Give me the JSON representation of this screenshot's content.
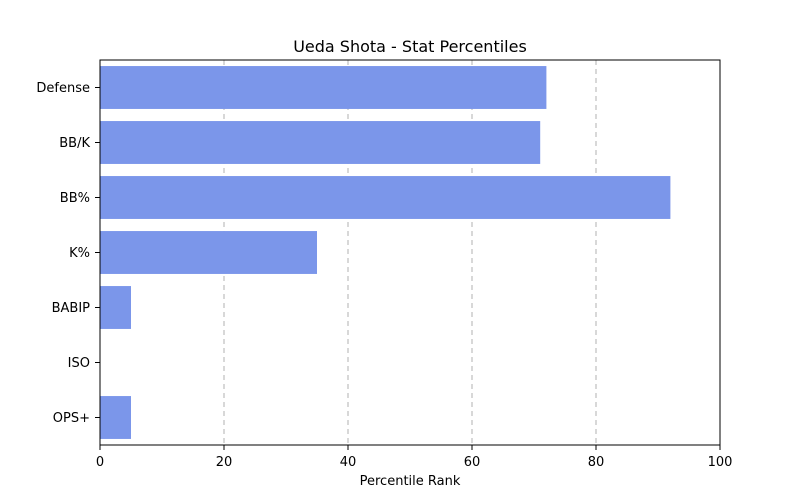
{
  "chart_data": {
    "type": "bar",
    "orientation": "horizontal",
    "title": "Ueda Shota - Stat Percentiles",
    "xlabel": "Percentile Rank",
    "ylabel": "",
    "xlim": [
      0,
      100
    ],
    "xticks": [
      0,
      20,
      40,
      60,
      80,
      100
    ],
    "categories": [
      "Defense",
      "BB/K",
      "BB%",
      "K%",
      "BABIP",
      "ISO",
      "OPS+"
    ],
    "values": [
      72,
      71,
      92,
      35,
      5,
      0,
      5
    ],
    "bar_color": "#7b96ea",
    "grid": "x-dashed",
    "legend": "none"
  }
}
